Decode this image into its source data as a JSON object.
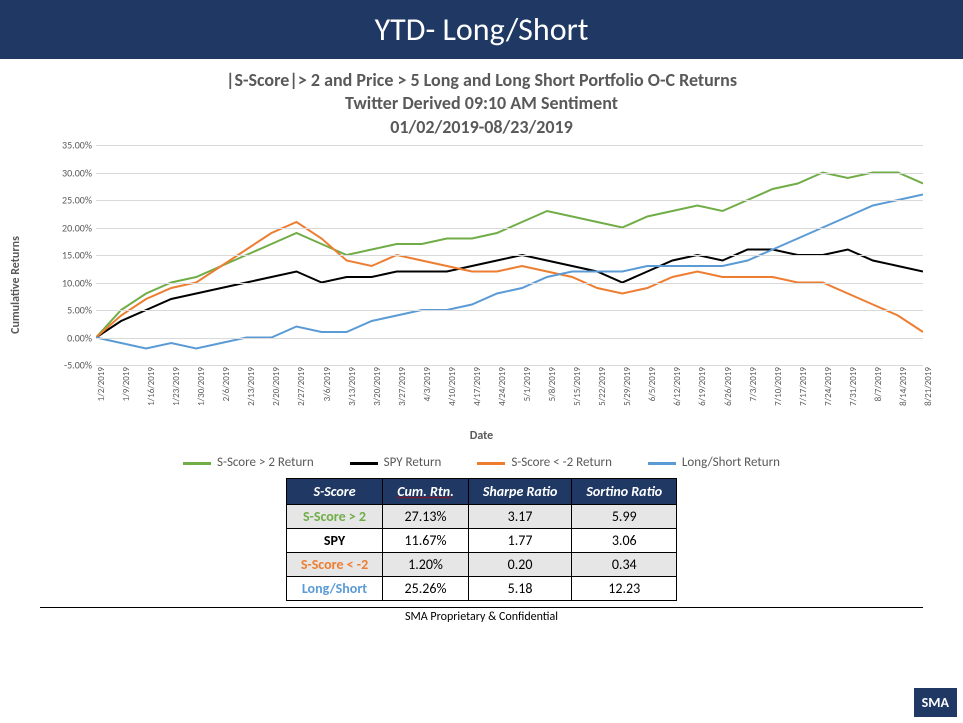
{
  "header": {
    "title": "YTD- Long/Short"
  },
  "chart": {
    "title_line1": "|S-Score|> 2 and Price > 5 Long and Long Short Portfolio O-C Returns",
    "title_line2": "Twitter Derived 09:10 AM Sentiment",
    "title_line3": "01/02/2019-08/23/2019",
    "y_label": "Cumulative Returns",
    "x_label": "Date",
    "ylim": [
      -5,
      35
    ],
    "ytick_step": 5,
    "grid_color": "#d9d9d9",
    "background_color": "#ffffff",
    "title_color": "#595959",
    "axis_color": "#595959",
    "title_fontsize": 18,
    "label_fontsize": 12,
    "tick_fontsize": 10,
    "line_width": 2,
    "dates": [
      "1/2/2019",
      "1/9/2019",
      "1/16/2019",
      "1/23/2019",
      "1/30/2019",
      "2/6/2019",
      "2/13/2019",
      "2/20/2019",
      "2/27/2019",
      "3/6/2019",
      "3/13/2019",
      "3/20/2019",
      "3/27/2019",
      "4/3/2019",
      "4/10/2019",
      "4/17/2019",
      "4/24/2019",
      "5/1/2019",
      "5/8/2019",
      "5/15/2019",
      "5/22/2019",
      "5/29/2019",
      "6/5/2019",
      "6/12/2019",
      "6/19/2019",
      "6/26/2019",
      "7/3/2019",
      "7/10/2019",
      "7/17/2019",
      "7/24/2019",
      "7/31/2019",
      "8/7/2019",
      "8/14/2019",
      "8/21/2019"
    ],
    "series": [
      {
        "name": "S-Score > 2 Return",
        "color": "#70ad47",
        "values": [
          0,
          5,
          8,
          10,
          11,
          13,
          15,
          17,
          19,
          17,
          15,
          16,
          17,
          17,
          18,
          18,
          19,
          21,
          23,
          22,
          21,
          20,
          22,
          23,
          24,
          23,
          25,
          27,
          28,
          30,
          29,
          30,
          30,
          28
        ]
      },
      {
        "name": "SPY Return",
        "color": "#000000",
        "values": [
          0,
          3,
          5,
          7,
          8,
          9,
          10,
          11,
          12,
          10,
          11,
          11,
          12,
          12,
          12,
          13,
          14,
          15,
          14,
          13,
          12,
          10,
          12,
          14,
          15,
          14,
          16,
          16,
          15,
          15,
          16,
          14,
          13,
          12
        ]
      },
      {
        "name": "S-Score < -2 Return",
        "color": "#ed7d31",
        "values": [
          0,
          4,
          7,
          9,
          10,
          13,
          16,
          19,
          21,
          18,
          14,
          13,
          15,
          14,
          13,
          12,
          12,
          13,
          12,
          11,
          9,
          8,
          9,
          11,
          12,
          11,
          11,
          11,
          10,
          10,
          8,
          6,
          4,
          1
        ]
      },
      {
        "name": "Long/Short Return",
        "color": "#5b9bd5",
        "values": [
          0,
          -1,
          -2,
          -1,
          -2,
          -1,
          0,
          0,
          2,
          1,
          1,
          3,
          4,
          5,
          5,
          6,
          8,
          9,
          11,
          12,
          12,
          12,
          13,
          13,
          13,
          13,
          14,
          16,
          18,
          20,
          22,
          24,
          25,
          26
        ]
      }
    ]
  },
  "legend": {
    "items": [
      {
        "label": "S-Score > 2 Return",
        "color": "#70ad47"
      },
      {
        "label": "SPY Return",
        "color": "#000000"
      },
      {
        "label": "S-Score < -2 Return",
        "color": "#ed7d31"
      },
      {
        "label": "Long/Short Return",
        "color": "#5b9bd5"
      }
    ]
  },
  "table": {
    "headers": [
      "S-Score",
      "Cum. Rtn.",
      "Sharpe Ratio",
      "Sortino Ratio"
    ],
    "header_bg": "#1f3864",
    "header_color": "#ffffff",
    "shade_bg": "#e7e6e6",
    "rows": [
      {
        "label": "S-Score > 2",
        "label_color": "#70ad47",
        "cum": "27.13%",
        "sharpe": "3.17",
        "sortino": "5.99",
        "shade": true
      },
      {
        "label": "SPY",
        "label_color": "#000000",
        "cum": "11.67%",
        "sharpe": "1.77",
        "sortino": "3.06",
        "shade": false
      },
      {
        "label": "S-Score < -2",
        "label_color": "#ed7d31",
        "cum": "1.20%",
        "sharpe": "0.20",
        "sortino": "0.34",
        "shade": true
      },
      {
        "label": "Long/Short",
        "label_color": "#5b9bd5",
        "cum": "25.26%",
        "sharpe": "5.18",
        "sortino": "12.23",
        "shade": false
      }
    ]
  },
  "footer": {
    "text": "SMA Proprietary & Confidential",
    "logo": "SMA"
  }
}
